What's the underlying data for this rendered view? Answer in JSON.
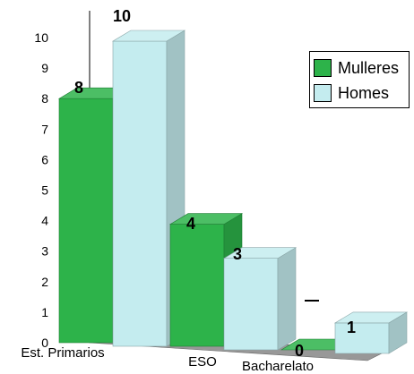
{
  "chart_data": {
    "type": "bar",
    "categories": [
      "Est. Primarios",
      "ESO",
      "Bacharelato"
    ],
    "series": [
      {
        "name": "Mulleres",
        "values": [
          8,
          4,
          0
        ]
      },
      {
        "name": "Homes",
        "values": [
          10,
          3,
          1
        ]
      }
    ],
    "ylim": [
      0,
      10
    ],
    "yticks": [
      0,
      1,
      2,
      3,
      4,
      5,
      6,
      7,
      8,
      9,
      10
    ],
    "data_labels": true,
    "grid": false,
    "legend_position": "top-right",
    "colors": {
      "Mulleres": "#2db34a",
      "Homes": "#c4ecef",
      "floor": "#8c8c8c"
    }
  },
  "legend": {
    "items": [
      {
        "label": "Mulleres",
        "color": "#2db34a"
      },
      {
        "label": "Homes",
        "color": "#c4ecef"
      }
    ]
  }
}
